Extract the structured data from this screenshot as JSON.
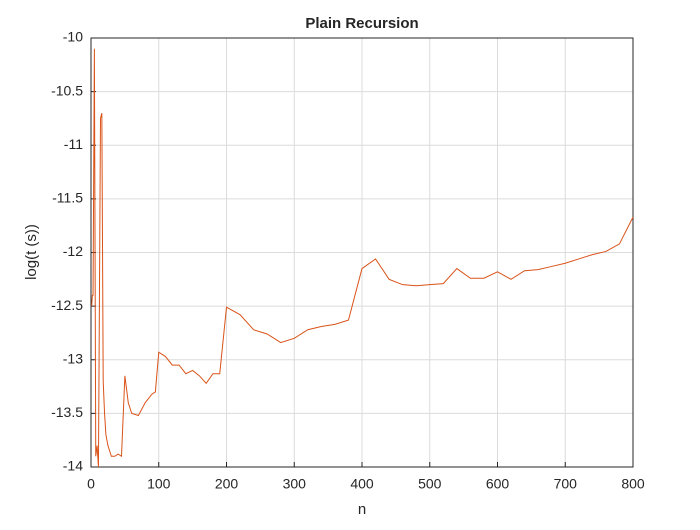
{
  "chart_data": {
    "type": "line",
    "title": "Plain Recursion",
    "x_label": "n",
    "y_label": "log(t (s))",
    "x": [
      1,
      2,
      3,
      5,
      7,
      9,
      11,
      14,
      16,
      18,
      20,
      22,
      25,
      30,
      35,
      40,
      45,
      50,
      55,
      60,
      70,
      80,
      90,
      95,
      100,
      110,
      120,
      130,
      140,
      150,
      160,
      170,
      180,
      190,
      200,
      220,
      240,
      260,
      280,
      300,
      320,
      340,
      360,
      380,
      400,
      420,
      440,
      460,
      480,
      500,
      520,
      540,
      560,
      580,
      600,
      620,
      640,
      660,
      680,
      700,
      720,
      740,
      760,
      780,
      800
    ],
    "series": [
      {
        "name": "log(t)",
        "color": "#d95319",
        "values": [
          -12.5,
          -12.4,
          -12.4,
          -10.1,
          -13.9,
          -13.8,
          -14,
          -10.75,
          -10.7,
          -13.2,
          -13.5,
          -13.7,
          -13.8,
          -13.9,
          -13.9,
          -13.88,
          -13.9,
          -13.15,
          -13.4,
          -13.5,
          -13.52,
          -13.4,
          -13.32,
          -13.3,
          -12.93,
          -12.97,
          -13.05,
          -13.05,
          -13.13,
          -13.1,
          -13.15,
          -13.22,
          -13.13,
          -13.13,
          -12.51,
          -12.58,
          -12.72,
          -12.76,
          -12.84,
          -12.8,
          -12.72,
          -12.69,
          -12.67,
          -12.63,
          -12.15,
          -12.06,
          -12.25,
          -12.3,
          -12.31,
          -12.3,
          -12.29,
          -12.15,
          -12.24,
          -12.24,
          -12.18,
          -12.25,
          -12.17,
          -12.16,
          -12.13,
          -12.1,
          -12.06,
          -12.02,
          -11.99,
          -11.92,
          -11.67
        ]
      }
    ],
    "xlim": [
      0,
      800
    ],
    "xticks": [
      0,
      100,
      200,
      300,
      400,
      500,
      600,
      700,
      800
    ],
    "ylim": [
      -14,
      -10
    ],
    "yticks": [
      -14,
      -13.5,
      -13,
      -12.5,
      -12,
      -11.5,
      -11,
      -10.5,
      -10
    ],
    "grid": true
  }
}
